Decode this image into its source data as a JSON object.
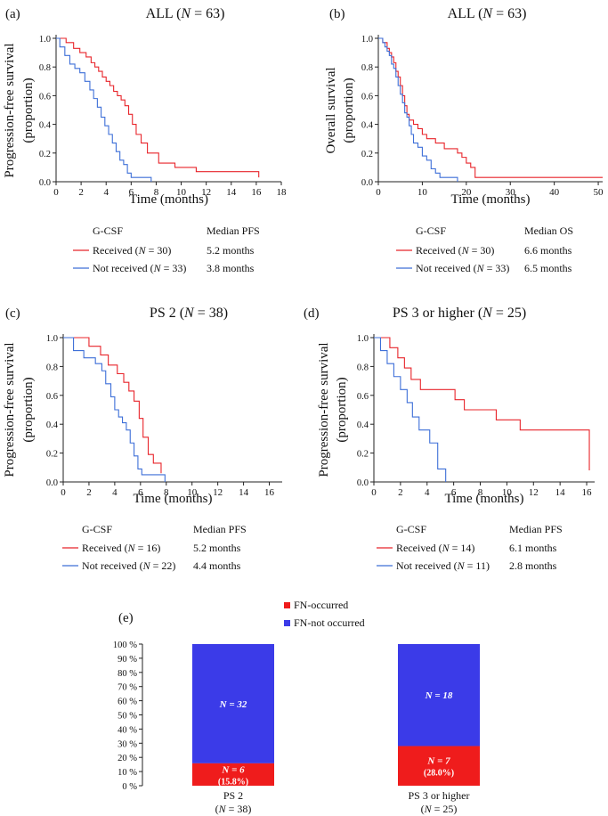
{
  "km_panels": [
    {
      "id": "a",
      "label": "(a)",
      "title": "ALL (N = 63)",
      "ylabel1": "Progression-free survival",
      "ylabel2": "(proportion)",
      "xlabel": "Time (months)",
      "xticks": [
        "0",
        "2",
        "4",
        "6",
        "8",
        "10",
        "12",
        "14",
        "16",
        "18"
      ],
      "xmax": 18,
      "yticks": [
        "0.0",
        "0.2",
        "0.4",
        "0.6",
        "0.8",
        "1.0"
      ],
      "legend_head": "G-CSF",
      "stat_head": "Median PFS",
      "series": [
        {
          "name": "Received (N = 30)",
          "median": "5.2 months",
          "color": "#e8242a",
          "x": [
            0,
            0.8,
            1.4,
            1.9,
            2.4,
            2.8,
            3.1,
            3.4,
            3.7,
            4.0,
            4.3,
            4.6,
            4.9,
            5.2,
            5.5,
            5.8,
            6.1,
            6.4,
            6.8,
            7.3,
            8.2,
            9.5,
            11.2,
            16.2
          ],
          "y": [
            1.0,
            0.97,
            0.93,
            0.9,
            0.87,
            0.83,
            0.8,
            0.77,
            0.73,
            0.7,
            0.67,
            0.63,
            0.6,
            0.57,
            0.53,
            0.47,
            0.4,
            0.33,
            0.27,
            0.2,
            0.13,
            0.1,
            0.07,
            0.03
          ]
        },
        {
          "name": "Not received (N = 33)",
          "median": "3.8 months",
          "color": "#3d6fd8",
          "x": [
            0,
            0.3,
            0.7,
            1.1,
            1.5,
            1.9,
            2.3,
            2.7,
            3.0,
            3.3,
            3.6,
            3.9,
            4.2,
            4.5,
            4.8,
            5.1,
            5.4,
            5.7,
            6.0,
            6.3,
            7.6
          ],
          "y": [
            1.0,
            0.94,
            0.88,
            0.82,
            0.79,
            0.76,
            0.7,
            0.64,
            0.58,
            0.52,
            0.45,
            0.39,
            0.33,
            0.27,
            0.21,
            0.15,
            0.12,
            0.06,
            0.03,
            0.03,
            0.0
          ]
        }
      ]
    },
    {
      "id": "b",
      "label": "(b)",
      "title": "ALL (N = 63)",
      "ylabel1": "Overall survival",
      "ylabel2": "(proportion)",
      "xlabel": "Time (months)",
      "xticks": [
        "0",
        "10",
        "20",
        "30",
        "40",
        "50"
      ],
      "xmax": 51,
      "yticks": [
        "0.0",
        "0.2",
        "0.4",
        "0.6",
        "0.8",
        "1.0"
      ],
      "legend_head": "G-CSF",
      "stat_head": "Median OS",
      "series": [
        {
          "name": "Received (N = 30)",
          "median": "6.6 months",
          "color": "#e8242a",
          "x": [
            0,
            1,
            2,
            2.5,
            3,
            3.5,
            4,
            4.5,
            5,
            5.5,
            6,
            6.5,
            7,
            8,
            9,
            10,
            11,
            13,
            15,
            18,
            19,
            20,
            21,
            22,
            51
          ],
          "y": [
            1.0,
            0.97,
            0.93,
            0.9,
            0.87,
            0.83,
            0.77,
            0.73,
            0.67,
            0.6,
            0.53,
            0.47,
            0.43,
            0.4,
            0.37,
            0.33,
            0.3,
            0.27,
            0.23,
            0.2,
            0.17,
            0.13,
            0.1,
            0.03,
            0.03
          ]
        },
        {
          "name": "Not received (N = 33)",
          "median": "6.5 months",
          "color": "#3d6fd8",
          "x": [
            0,
            1,
            1.5,
            2,
            2.5,
            3,
            3.5,
            4,
            4.5,
            5,
            5.5,
            6,
            6.5,
            7,
            7.5,
            8,
            9,
            10,
            11,
            12,
            13,
            14,
            17,
            18
          ],
          "y": [
            1.0,
            0.97,
            0.94,
            0.91,
            0.88,
            0.82,
            0.79,
            0.73,
            0.67,
            0.61,
            0.55,
            0.48,
            0.45,
            0.39,
            0.33,
            0.27,
            0.24,
            0.18,
            0.15,
            0.09,
            0.06,
            0.03,
            0.03,
            0.0
          ]
        }
      ]
    },
    {
      "id": "c",
      "label": "(c)",
      "title": "PS 2 (N = 38)",
      "ylabel1": "Progression-free survival",
      "ylabel2": "(proportion)",
      "xlabel": "Time (months)",
      "xticks": [
        "0",
        "2",
        "4",
        "6",
        "8",
        "10",
        "12",
        "14",
        "16"
      ],
      "xmax": 17,
      "yticks": [
        "0.0",
        "0.2",
        "0.4",
        "0.6",
        "0.8",
        "1.0"
      ],
      "legend_head": "G-CSF",
      "stat_head": "Median PFS",
      "series": [
        {
          "name": "Received (N = 16)",
          "median": "5.2 months",
          "color": "#e8242a",
          "x": [
            0,
            2,
            2.9,
            3.5,
            4.2,
            4.7,
            5.1,
            5.5,
            5.9,
            6.2,
            6.6,
            7.0,
            7.6
          ],
          "y": [
            1.0,
            0.94,
            0.88,
            0.81,
            0.75,
            0.69,
            0.63,
            0.56,
            0.44,
            0.31,
            0.19,
            0.13,
            0.06
          ]
        },
        {
          "name": "Not received (N = 22)",
          "median": "4.4 months",
          "color": "#3d6fd8",
          "x": [
            0,
            0.8,
            1.6,
            2.5,
            3.0,
            3.3,
            3.7,
            4.0,
            4.3,
            4.6,
            4.9,
            5.2,
            5.5,
            5.8,
            6.1,
            7.9
          ],
          "y": [
            1.0,
            0.91,
            0.86,
            0.82,
            0.77,
            0.68,
            0.59,
            0.5,
            0.45,
            0.41,
            0.36,
            0.27,
            0.18,
            0.09,
            0.05,
            0.0
          ]
        }
      ]
    },
    {
      "id": "d",
      "label": "(d)",
      "title": "PS 3 or higher (N = 25)",
      "ylabel1": "Progression-free survival",
      "ylabel2": "(proportion)",
      "xlabel": "Time (months)",
      "xticks": [
        "0",
        "2",
        "4",
        "6",
        "8",
        "10",
        "12",
        "14",
        "16"
      ],
      "xmax": 16.6,
      "yticks": [
        "0.0",
        "0.2",
        "0.4",
        "0.6",
        "0.8",
        "1.0"
      ],
      "legend_head": "G-CSF",
      "stat_head": "Median PFS",
      "series": [
        {
          "name": "Received (N = 14)",
          "median": "6.1 months",
          "color": "#e8242a",
          "x": [
            0,
            1.2,
            1.8,
            2.3,
            2.8,
            3.5,
            6.1,
            6.8,
            9.2,
            11.0,
            16.2
          ],
          "y": [
            1.0,
            0.93,
            0.86,
            0.79,
            0.71,
            0.64,
            0.57,
            0.5,
            0.43,
            0.36,
            0.08
          ]
        },
        {
          "name": "Not received (N = 11)",
          "median": "2.8 months",
          "color": "#3d6fd8",
          "x": [
            0,
            0.5,
            1.0,
            1.5,
            2.0,
            2.5,
            2.9,
            3.4,
            4.2,
            4.8,
            5.4
          ],
          "y": [
            1.0,
            0.91,
            0.82,
            0.73,
            0.64,
            0.55,
            0.45,
            0.36,
            0.27,
            0.09,
            0.0
          ]
        }
      ]
    }
  ],
  "bar_panel": {
    "label": "(e)",
    "legend": [
      {
        "name": "FN-occurred",
        "color": "#ef1c1c"
      },
      {
        "name": "FN-not occurred",
        "color": "#3b3be8"
      }
    ],
    "yticks": [
      "0 %",
      "10 %",
      "20 %",
      "30 %",
      "40 %",
      "50 %",
      "60 %",
      "70 %",
      "80 %",
      "90 %",
      "100 %"
    ],
    "categories": [
      "PS 2",
      "PS 3 or higher"
    ],
    "category_n": [
      "(N = 38)",
      "(N = 25)"
    ],
    "fn_occurred_pct": [
      15.8,
      28.0
    ],
    "fn_occurred_label_n": [
      "N = 6",
      "N = 7"
    ],
    "fn_occurred_label_pct": [
      "(15.8%)",
      "(28.0%)"
    ],
    "fn_not_label_n": [
      "N = 32",
      "N = 18"
    ]
  },
  "chart_data": [
    {
      "type": "line",
      "title": "ALL (N = 63)",
      "xlabel": "Time (months)",
      "ylabel": "Progression-free survival (proportion)",
      "xlim": [
        0,
        18
      ],
      "ylim": [
        0,
        1
      ],
      "series": [
        {
          "name": "Received (N = 30)",
          "median": "5.2 months"
        },
        {
          "name": "Not received (N = 33)",
          "median": "3.8 months"
        }
      ]
    },
    {
      "type": "line",
      "title": "ALL (N = 63)",
      "xlabel": "Time (months)",
      "ylabel": "Overall survival (proportion)",
      "xlim": [
        0,
        51
      ],
      "ylim": [
        0,
        1
      ],
      "series": [
        {
          "name": "Received (N = 30)",
          "median": "6.6 months"
        },
        {
          "name": "Not received (N = 33)",
          "median": "6.5 months"
        }
      ]
    },
    {
      "type": "line",
      "title": "PS 2 (N = 38)",
      "xlabel": "Time (months)",
      "ylabel": "Progression-free survival (proportion)",
      "xlim": [
        0,
        17
      ],
      "ylim": [
        0,
        1
      ],
      "series": [
        {
          "name": "Received (N = 16)",
          "median": "5.2 months"
        },
        {
          "name": "Not received (N = 22)",
          "median": "4.4 months"
        }
      ]
    },
    {
      "type": "line",
      "title": "PS 3 or higher (N = 25)",
      "xlabel": "Time (months)",
      "ylabel": "Progression-free survival (proportion)",
      "xlim": [
        0,
        16.6
      ],
      "ylim": [
        0,
        1
      ],
      "series": [
        {
          "name": "Received (N = 14)",
          "median": "6.1 months"
        },
        {
          "name": "Not received (N = 11)",
          "median": "2.8 months"
        }
      ]
    },
    {
      "type": "bar",
      "title": "",
      "categories": [
        "PS 2",
        "PS 3 or higher"
      ],
      "ylim": [
        0,
        100
      ],
      "series": [
        {
          "name": "FN-occurred",
          "values": [
            15.8,
            28.0
          ]
        },
        {
          "name": "FN-not occurred",
          "values": [
            84.2,
            72.0
          ]
        }
      ]
    }
  ]
}
